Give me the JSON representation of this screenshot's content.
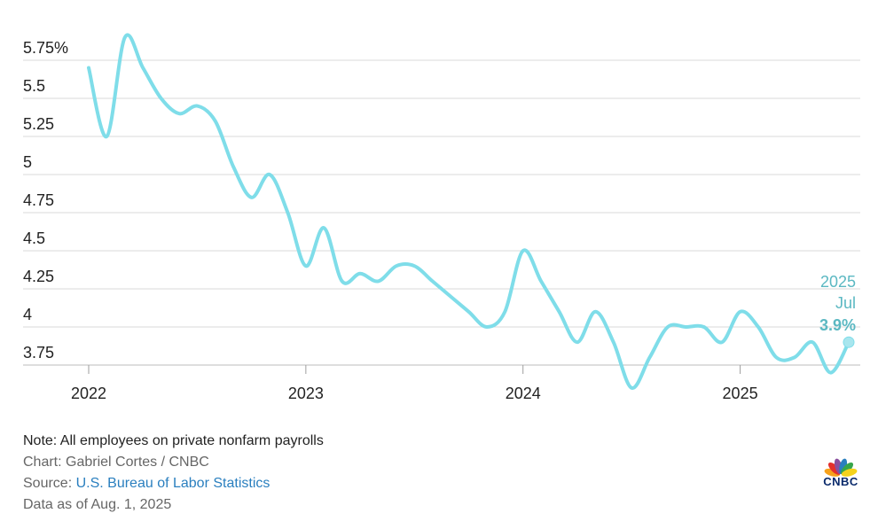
{
  "chart_data": {
    "type": "line",
    "title": "",
    "xlabel": "",
    "ylabel": "",
    "ylim": [
      3.75,
      5.75
    ],
    "y_ticks": [
      5.75,
      5.5,
      5.25,
      5,
      4.75,
      4.5,
      4.25,
      4,
      3.75
    ],
    "y_tick_labels": [
      "5.75%",
      "5.5",
      "5.25",
      "5",
      "4.75",
      "4.5",
      "4.25",
      "4",
      "3.75"
    ],
    "x_ticks": [
      2022,
      2023,
      2024,
      2025
    ],
    "x_tick_labels": [
      "2022",
      "2023",
      "2024",
      "2025"
    ],
    "grid": true,
    "line_color": "#7fdde9",
    "series": [
      {
        "x": [
          "2022-01",
          "2022-02",
          "2022-03",
          "2022-04",
          "2022-05",
          "2022-06",
          "2022-07",
          "2022-08",
          "2022-09",
          "2022-10",
          "2022-11",
          "2022-12",
          "2023-01",
          "2023-02",
          "2023-03",
          "2023-04",
          "2023-05",
          "2023-06",
          "2023-07",
          "2023-08",
          "2023-09",
          "2023-10",
          "2023-11",
          "2023-12",
          "2024-01",
          "2024-02",
          "2024-03",
          "2024-04",
          "2024-05",
          "2024-06",
          "2024-07",
          "2024-08",
          "2024-09",
          "2024-10",
          "2024-11",
          "2024-12",
          "2025-01",
          "2025-02",
          "2025-03",
          "2025-04",
          "2025-05",
          "2025-06",
          "2025-07"
        ],
        "values": [
          5.7,
          5.25,
          5.9,
          5.7,
          5.5,
          5.4,
          5.45,
          5.35,
          5.05,
          4.85,
          5.0,
          4.75,
          4.4,
          4.65,
          4.3,
          4.35,
          4.3,
          4.4,
          4.4,
          4.3,
          4.2,
          4.1,
          4.0,
          4.1,
          4.5,
          4.3,
          4.1,
          3.9,
          4.1,
          3.9,
          3.6,
          3.8,
          4.0,
          4.0,
          4.0,
          3.9,
          4.1,
          4.0,
          3.8,
          3.8,
          3.9,
          3.7,
          3.9
        ]
      }
    ],
    "callout": {
      "year": "2025",
      "month": "Jul",
      "value_label": "3.9%",
      "color": "#5bb8c2"
    }
  },
  "footer": {
    "note": "Note: All employees on private nonfarm payrolls",
    "chart_credit": "Chart: Gabriel Cortes / CNBC",
    "source_prefix": "Source: ",
    "source_link": "U.S. Bureau of Labor Statistics",
    "data_as_of": "Data as of Aug. 1, 2025"
  },
  "logo": {
    "wordmark": "CNBC",
    "colors": [
      "#f7a21b",
      "#e3312d",
      "#8a4f9e",
      "#2a7fbf",
      "#37a54a",
      "#f4d21c"
    ]
  }
}
